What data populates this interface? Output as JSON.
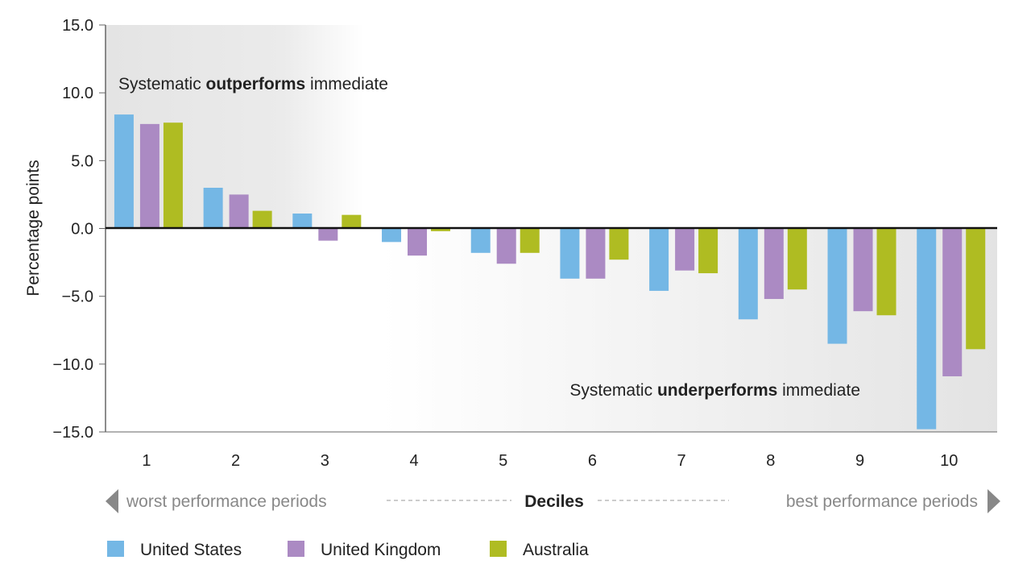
{
  "chart_data": {
    "type": "bar",
    "ylabel": "Percentage points",
    "xlabel": "Deciles",
    "ylim": [
      -15,
      15
    ],
    "yticks": [
      "15.0",
      "10.0",
      "5.0",
      "0.0",
      "−5.0",
      "−10.0",
      "−15.0"
    ],
    "ytick_values": [
      15,
      10,
      5,
      0,
      -5,
      -10,
      -15
    ],
    "categories": [
      "1",
      "2",
      "3",
      "4",
      "5",
      "6",
      "7",
      "8",
      "9",
      "10"
    ],
    "series": [
      {
        "name": "United States",
        "color": "#74b7e5",
        "values": [
          8.4,
          3.0,
          1.1,
          -1.0,
          -1.8,
          -3.7,
          -4.6,
          -6.7,
          -8.5,
          -14.8
        ]
      },
      {
        "name": "United Kingdom",
        "color": "#ab8ac3",
        "values": [
          7.7,
          2.5,
          -0.9,
          -2.0,
          -2.6,
          -3.7,
          -3.1,
          -5.2,
          -6.1,
          -10.9
        ]
      },
      {
        "name": "Australia",
        "color": "#afbc22",
        "values": [
          7.8,
          1.3,
          1.0,
          -0.2,
          -1.8,
          -2.3,
          -3.3,
          -4.5,
          -6.4,
          -8.9
        ]
      }
    ],
    "annotations": {
      "top": {
        "pre": "Systematic ",
        "bold": "outperforms",
        "post": " immediate"
      },
      "bottom": {
        "pre": "Systematic ",
        "bold": "underperforms",
        "post": " immediate"
      }
    },
    "axis_caption": {
      "left": "worst performance periods",
      "center": "Deciles",
      "right": "best performance periods"
    },
    "legend_placement": "bottom-left",
    "grid": false
  }
}
